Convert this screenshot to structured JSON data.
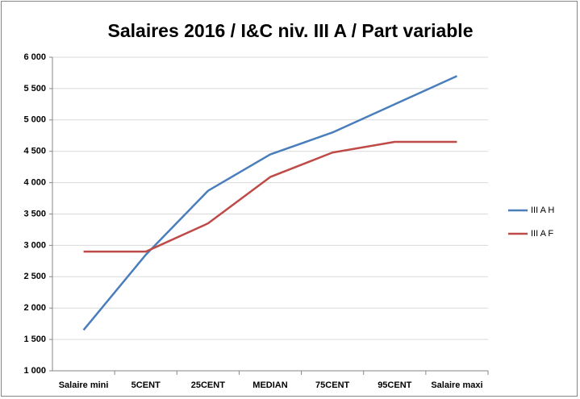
{
  "chart_data": {
    "type": "line",
    "title": "Salaires 2016 / I&C niv. III A / Part variable",
    "categories": [
      "Salaire mini",
      "5CENT",
      "25CENT",
      "MEDIAN",
      "75CENT",
      "95CENT",
      "Salaire maxi"
    ],
    "series": [
      {
        "name": "III A H",
        "color": "#4a7ebb",
        "values": [
          1650,
          2850,
          3870,
          4450,
          4800,
          5250,
          5700
        ]
      },
      {
        "name": "III A F",
        "color": "#be4b48",
        "values": [
          2900,
          2900,
          3350,
          4090,
          4480,
          4650,
          4650
        ]
      }
    ],
    "ylim": [
      1000,
      6000
    ],
    "yticks": [
      {
        "value": 1000,
        "label": "1 000"
      },
      {
        "value": 1500,
        "label": "1 500"
      },
      {
        "value": 2000,
        "label": "2 000"
      },
      {
        "value": 2500,
        "label": "2 500"
      },
      {
        "value": 3000,
        "label": "3 000"
      },
      {
        "value": 3500,
        "label": "3 500"
      },
      {
        "value": 4000,
        "label": "4 000"
      },
      {
        "value": 4500,
        "label": "4 500"
      },
      {
        "value": 5000,
        "label": "5 000"
      },
      {
        "value": 5500,
        "label": "5 500"
      },
      {
        "value": 6000,
        "label": "6 000"
      }
    ],
    "grid": true,
    "legend": "right"
  }
}
